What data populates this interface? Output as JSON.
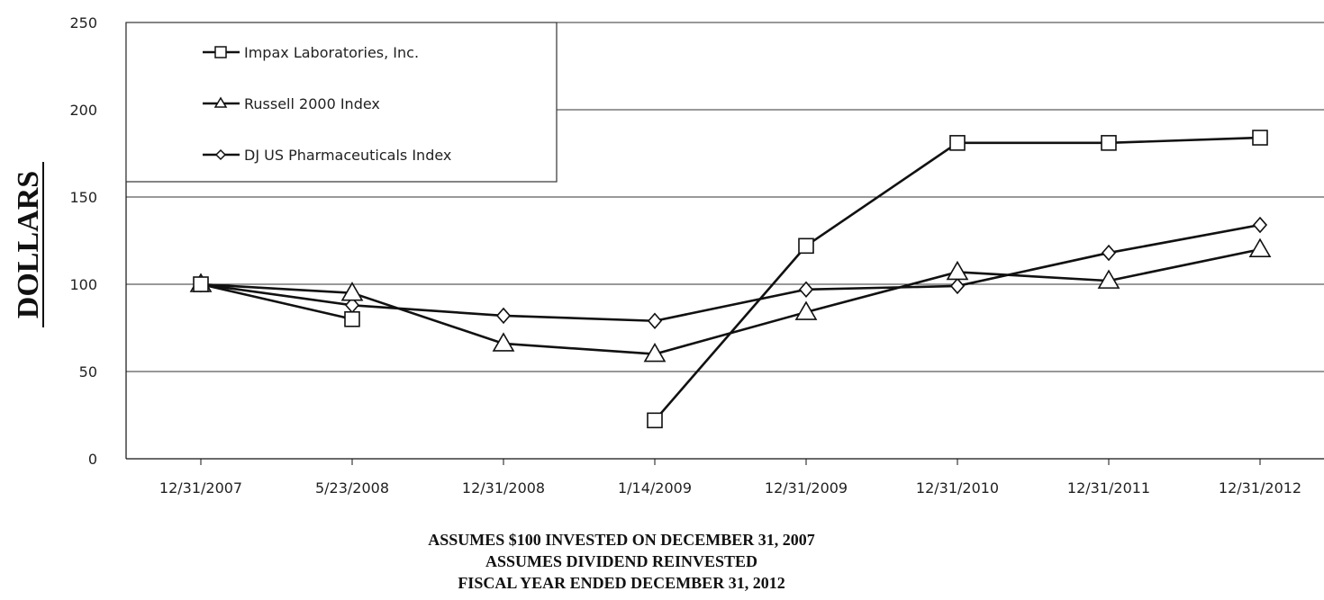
{
  "chart_data": {
    "type": "line",
    "title": "",
    "xlabel": "",
    "ylabel": "DOLLARS",
    "ylim": [
      0,
      250
    ],
    "yticks": [
      0,
      50,
      100,
      150,
      200,
      250
    ],
    "grid": true,
    "legend_position": "top-left",
    "categories": [
      "12/31/2007",
      "5/23/2008",
      "12/31/2008",
      "1/14/2009",
      "12/31/2009",
      "12/31/2010",
      "12/31/2011",
      "12/31/2012"
    ],
    "series": [
      {
        "name": "Impax Laboratories, Inc.",
        "marker": "square",
        "values": [
          100,
          80,
          null,
          22,
          122,
          181,
          181,
          184
        ]
      },
      {
        "name": "Russell 2000 Index",
        "marker": "triangle",
        "values": [
          100,
          95,
          66,
          60,
          84,
          107,
          102,
          120
        ]
      },
      {
        "name": "DJ US Pharmaceuticals Index",
        "marker": "diamond",
        "values": [
          100,
          88,
          82,
          79,
          97,
          99,
          118,
          134
        ]
      }
    ]
  },
  "notes": [
    "ASSUMES $100 INVESTED ON DECEMBER 31, 2007",
    "ASSUMES DIVIDEND REINVESTED",
    "FISCAL YEAR ENDED DECEMBER 31, 2012"
  ],
  "colors": {
    "line": "#111111",
    "grid": "#333333",
    "marker_fill": "#ffffff"
  }
}
